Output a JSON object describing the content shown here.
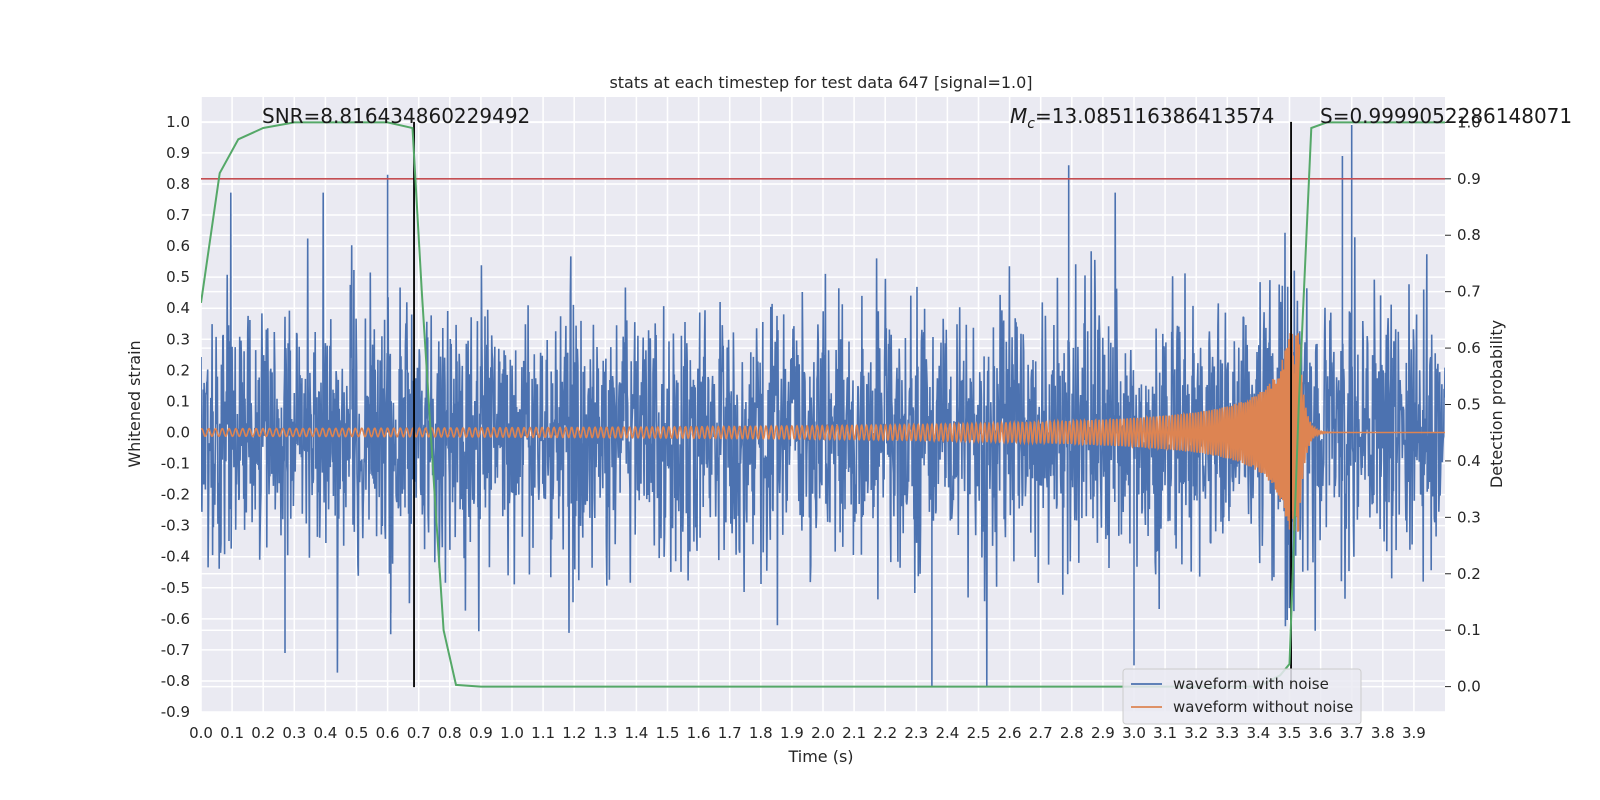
{
  "chart_data": {
    "type": "line",
    "title": "stats at each timestep for test data 647 [signal=1.0]",
    "xlabel": "Time (s)",
    "ylabel": "Whitened strain",
    "y2label": "Detection probability",
    "xlim": [
      0.0,
      4.0
    ],
    "ylim": [
      -0.9,
      1.08
    ],
    "y2lim": [
      -0.045,
      1.045
    ],
    "xticks": [
      "0.0",
      "0.1",
      "0.2",
      "0.3",
      "0.4",
      "0.5",
      "0.6",
      "0.7",
      "0.8",
      "0.9",
      "1.0",
      "1.1",
      "1.2",
      "1.3",
      "1.4",
      "1.5",
      "1.6",
      "1.7",
      "1.8",
      "1.9",
      "2.0",
      "2.1",
      "2.2",
      "2.3",
      "2.4",
      "2.5",
      "2.6",
      "2.7",
      "2.8",
      "2.9",
      "3.0",
      "3.1",
      "3.2",
      "3.3",
      "3.4",
      "3.5",
      "3.6",
      "3.7",
      "3.8",
      "3.9"
    ],
    "yticks": [
      "1.0",
      "0.9",
      "0.8",
      "0.7",
      "0.6",
      "0.5",
      "0.4",
      "0.3",
      "0.2",
      "0.1",
      "0.0",
      "-0.1",
      "-0.2",
      "-0.3",
      "-0.4",
      "-0.5",
      "-0.6",
      "-0.7",
      "-0.8",
      "-0.9"
    ],
    "y2ticks": [
      "1.0",
      "0.9",
      "0.8",
      "0.7",
      "0.6",
      "0.5",
      "0.4",
      "0.3",
      "0.2",
      "0.1",
      "0.0"
    ],
    "grid": true,
    "legend_position": "lower-right",
    "annotations": {
      "snr": "SNR=8.816434860229492",
      "mc_symbol": "M",
      "mc_sub": "c",
      "mc_value": "=13.085116386413574",
      "s": "S=0.9999052286148071"
    },
    "series": [
      {
        "name": "waveform with noise",
        "color": "#4c72b0",
        "axis": "left",
        "description_range": [
          -0.82,
          0.99
        ],
        "extreme_peaks": [
          [
            0.6,
            0.83
          ],
          [
            2.79,
            0.86
          ],
          [
            3.67,
            0.89
          ],
          [
            3.7,
            0.99
          ],
          [
            0.27,
            -0.71
          ],
          [
            0.61,
            -0.65
          ],
          [
            2.35,
            -0.82
          ],
          [
            3.0,
            -0.75
          ]
        ]
      },
      {
        "name": "waveform without noise",
        "color": "#dd8452",
        "axis": "left",
        "chirp_start_amplitude": 0.012,
        "chirp_peak_amplitude": 0.32,
        "merger_time": 3.53
      },
      {
        "name": "detection probability",
        "color": "#55a868",
        "axis": "right",
        "x": [
          0.0,
          0.06,
          0.12,
          0.2,
          0.3,
          0.4,
          0.5,
          0.6,
          0.68,
          0.71,
          0.75,
          0.78,
          0.82,
          0.9,
          1.5,
          2.0,
          2.5,
          3.0,
          3.4,
          3.47,
          3.5,
          3.53,
          3.57,
          3.62,
          3.68,
          3.8,
          4.0
        ],
        "y": [
          0.68,
          0.91,
          0.97,
          0.99,
          1.0,
          1.0,
          1.0,
          1.0,
          0.99,
          0.7,
          0.35,
          0.1,
          0.003,
          0.0,
          0.0,
          0.0,
          0.0,
          0.0,
          0.0,
          0.02,
          0.04,
          0.5,
          0.99,
          1.0,
          1.0,
          1.0,
          1.0
        ]
      }
    ],
    "threshold_line": {
      "y2": 0.9,
      "color": "#c44e52"
    },
    "vertical_markers": [
      {
        "x": 0.685,
        "y_top": 1.0,
        "y_bottom": -0.82
      },
      {
        "x": 3.505,
        "y_top": 1.0,
        "y_bottom": -0.82
      }
    ]
  }
}
